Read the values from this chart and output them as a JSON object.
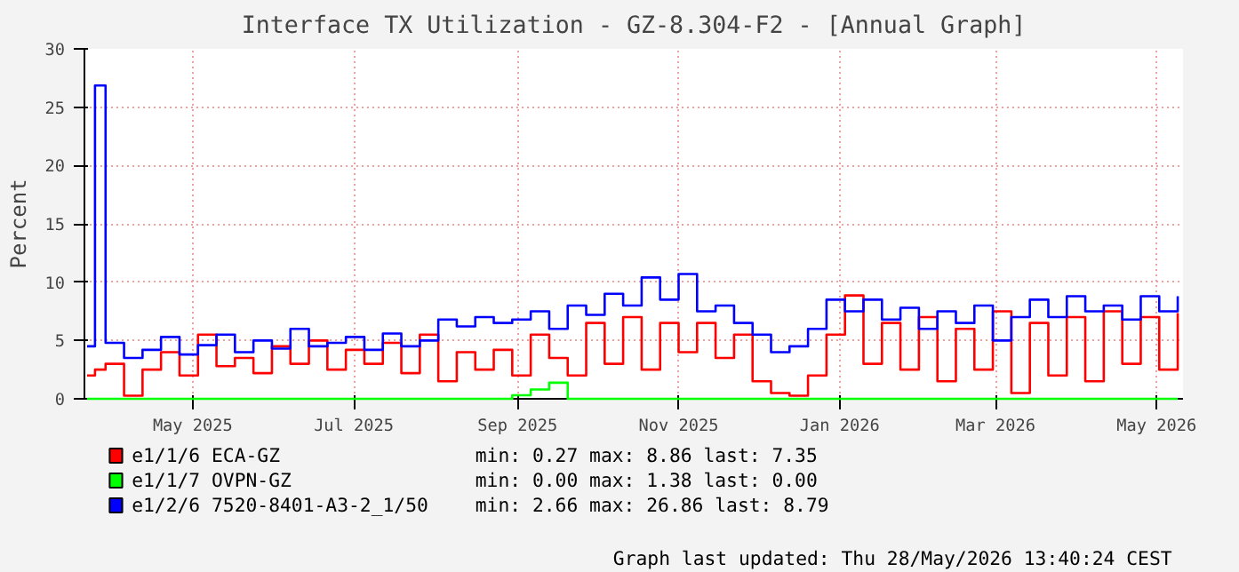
{
  "chart_data": {
    "type": "step",
    "title": "Interface TX Utilization - GZ-8.304-F2 - [Annual Graph]",
    "ylabel": "Percent",
    "x": [
      "2025-03-22",
      "2025-03-25",
      "2025-03-29",
      "2025-04-05",
      "2025-04-12",
      "2025-04-19",
      "2025-04-26",
      "2025-05-03",
      "2025-05-10",
      "2025-05-17",
      "2025-05-24",
      "2025-05-31",
      "2025-06-07",
      "2025-06-14",
      "2025-06-21",
      "2025-06-28",
      "2025-07-05",
      "2025-07-12",
      "2025-07-19",
      "2025-07-26",
      "2025-08-02",
      "2025-08-09",
      "2025-08-16",
      "2025-08-23",
      "2025-08-30",
      "2025-09-06",
      "2025-09-13",
      "2025-09-20",
      "2025-09-27",
      "2025-10-04",
      "2025-10-11",
      "2025-10-18",
      "2025-10-25",
      "2025-11-01",
      "2025-11-08",
      "2025-11-15",
      "2025-11-22",
      "2025-11-29",
      "2025-12-06",
      "2025-12-13",
      "2025-12-20",
      "2025-12-27",
      "2026-01-03",
      "2026-01-10",
      "2026-01-17",
      "2026-01-24",
      "2026-01-31",
      "2026-02-07",
      "2026-02-14",
      "2026-02-21",
      "2026-02-28",
      "2026-03-07",
      "2026-03-14",
      "2026-03-21",
      "2026-03-28",
      "2026-04-04",
      "2026-04-11",
      "2026-04-18",
      "2026-04-25",
      "2026-05-02",
      "2026-05-09"
    ],
    "series": [
      {
        "name": "e1/1/6 ECA-GZ",
        "color": "#ff0000",
        "values": [
          2.0,
          2.5,
          3.0,
          0.27,
          2.5,
          4.0,
          2.0,
          5.5,
          2.8,
          3.5,
          2.2,
          4.5,
          3.0,
          5.0,
          2.5,
          4.2,
          3.0,
          4.8,
          2.2,
          5.5,
          1.5,
          4.0,
          2.5,
          4.2,
          2.0,
          5.5,
          3.5,
          2.0,
          6.5,
          3.0,
          7.0,
          2.5,
          6.5,
          4.0,
          6.5,
          3.5,
          5.5,
          1.5,
          0.5,
          0.27,
          2.0,
          5.5,
          8.86,
          3.0,
          6.5,
          2.5,
          7.0,
          1.5,
          6.0,
          2.5,
          7.5,
          0.5,
          6.5,
          2.0,
          7.0,
          1.5,
          7.5,
          3.0,
          7.0,
          2.5,
          7.35
        ]
      },
      {
        "name": "e1/1/7 OVPN-GZ",
        "color": "#00ff00",
        "values": [
          0,
          0,
          0,
          0,
          0,
          0,
          0,
          0,
          0,
          0,
          0,
          0,
          0,
          0,
          0,
          0,
          0,
          0,
          0,
          0,
          0,
          0,
          0,
          0,
          0.3,
          0.8,
          1.38,
          0,
          0,
          0,
          0,
          0,
          0,
          0,
          0,
          0,
          0,
          0,
          0,
          0,
          0,
          0,
          0,
          0,
          0,
          0,
          0,
          0,
          0,
          0,
          0,
          0,
          0,
          0,
          0,
          0,
          0,
          0,
          0,
          0,
          0
        ]
      },
      {
        "name": "e1/2/6 7520-8401-A3-2_1/50",
        "color": "#0000ff",
        "values": [
          4.5,
          26.86,
          4.8,
          3.5,
          4.2,
          5.3,
          3.8,
          4.6,
          5.5,
          4.0,
          5.0,
          4.3,
          6.0,
          4.5,
          4.8,
          5.3,
          4.2,
          5.6,
          4.5,
          5.0,
          6.8,
          6.2,
          7.0,
          6.5,
          6.8,
          7.5,
          6.0,
          8.0,
          7.2,
          9.0,
          8.0,
          10.4,
          8.5,
          10.7,
          7.5,
          8.0,
          6.5,
          5.5,
          4.0,
          4.5,
          6.0,
          8.5,
          7.5,
          8.5,
          6.8,
          7.8,
          6.0,
          7.5,
          6.5,
          8.0,
          5.0,
          7.0,
          8.5,
          7.0,
          8.8,
          7.5,
          8.0,
          6.8,
          8.8,
          7.5,
          8.79
        ]
      }
    ],
    "xlim": [
      "2025-03-21",
      "2026-05-11"
    ],
    "xticks": [
      {
        "value": "2025-05-01",
        "label": "May 2025"
      },
      {
        "value": "2025-07-01",
        "label": "Jul 2025"
      },
      {
        "value": "2025-09-01",
        "label": "Sep 2025"
      },
      {
        "value": "2025-11-01",
        "label": "Nov 2025"
      },
      {
        "value": "2026-01-01",
        "label": "Jan 2026"
      },
      {
        "value": "2026-03-01",
        "label": "Mar 2026"
      },
      {
        "value": "2026-05-01",
        "label": "May 2026"
      }
    ],
    "ylim": [
      0,
      30
    ],
    "yticks": [
      0,
      5,
      10,
      15,
      20,
      25,
      30
    ],
    "grid": true,
    "legend": "bottom",
    "annotations": [
      "min:      0.27   max:      8.86   last:      7.35",
      "min:      0.00   max:      1.38   last:      0.00",
      "min:      2.66   max:     26.86   last:      8.79",
      "Graph last updated: Thu 28/May/2026 13:40:24 CEST"
    ]
  }
}
